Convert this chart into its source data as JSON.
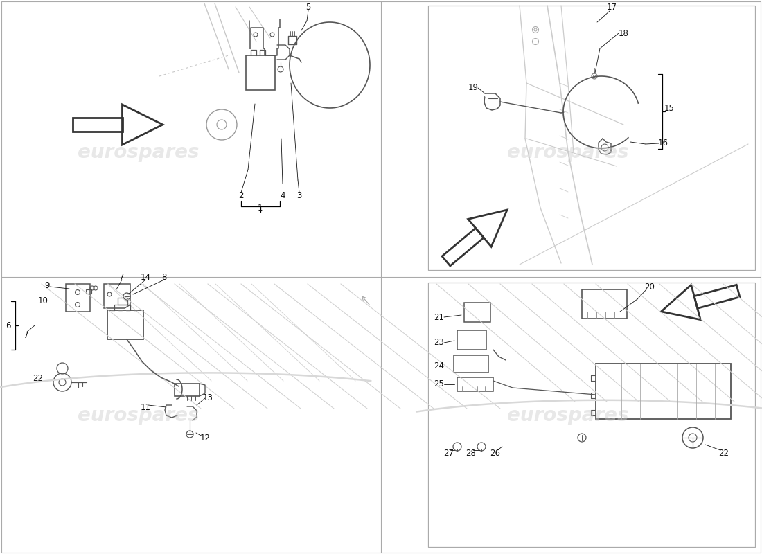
{
  "bg_color": "#ffffff",
  "watermark_text": "eurospares",
  "fig_width": 11.0,
  "fig_height": 8.0,
  "dpi": 100,
  "light": "#c8c8c8",
  "mid": "#aaaaaa",
  "dark": "#555555",
  "label_color": "#111111",
  "wm_color": "#cccccc",
  "wm_alpha": 0.45
}
